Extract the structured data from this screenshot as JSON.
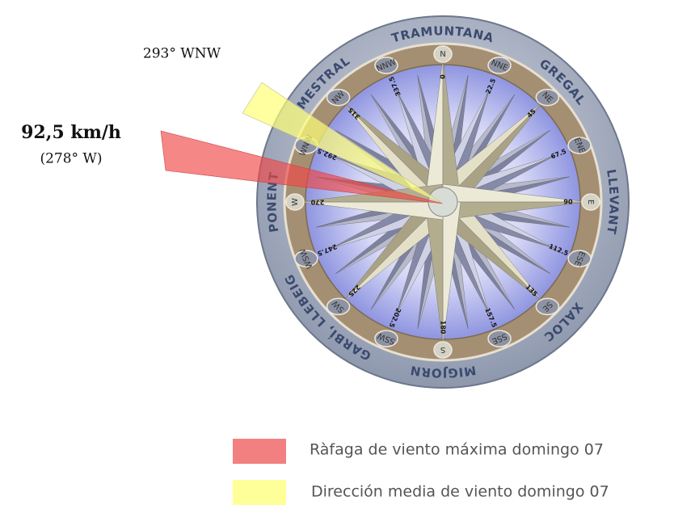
{
  "annotations": {
    "mean_direction": "293° WNW",
    "gust_speed": "92,5 km/h",
    "gust_direction": "(278° W)"
  },
  "compass": {
    "winds": [
      "TRAMUNTANA",
      "GREGAL",
      "LLEVANT",
      "XALOC",
      "MIGJORN",
      "GARBÍ, LLEBEIG",
      "PONENT",
      "MESTRAL"
    ],
    "points": [
      "N",
      "NNE",
      "NE",
      "ENE",
      "E",
      "ESE",
      "SE",
      "SSE",
      "S",
      "SSW",
      "SW",
      "WSW",
      "W",
      "WNW",
      "NW",
      "NNW"
    ],
    "degrees": [
      "0",
      "22.5",
      "45",
      "67.5",
      "90",
      "112.5",
      "135",
      "157.5",
      "180",
      "202.5",
      "225",
      "247.5",
      "270",
      "292.5",
      "315",
      "337.5"
    ]
  },
  "legend": {
    "items": [
      {
        "label": "Ràfaga de viento máxima domingo 07"
      },
      {
        "label": "Dirección media de viento domingo 07"
      }
    ]
  }
}
